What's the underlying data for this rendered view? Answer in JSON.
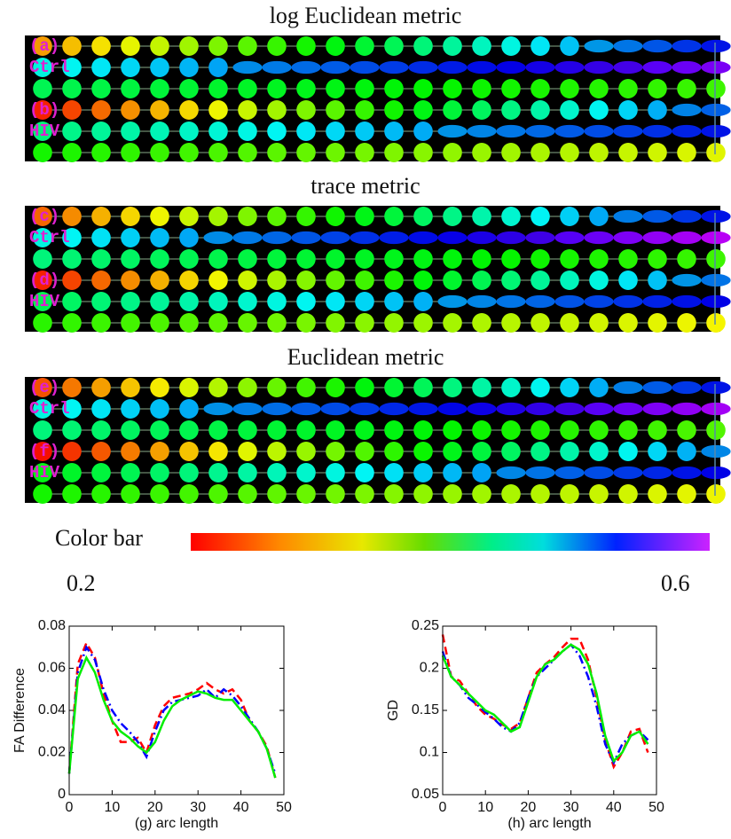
{
  "panels": [
    {
      "title": "log Euclidean metric",
      "labels": [
        "(a)",
        "Ctrl",
        "(b)",
        "HIV"
      ]
    },
    {
      "title": "trace metric",
      "labels": [
        "(c)",
        "Ctrl",
        "(d)",
        "HIV"
      ]
    },
    {
      "title": "Euclidean metric",
      "labels": [
        "(e)",
        "Ctrl",
        "(f)",
        "HIV"
      ]
    }
  ],
  "colorbar": {
    "label": "Color bar",
    "ticks": [
      0.2,
      0.6
    ]
  },
  "chart_data": [
    {
      "type": "line",
      "ylabel": "FA Difference",
      "xlabel": "(g) arc length",
      "xlim": [
        0,
        50
      ],
      "xticks": [
        0,
        10,
        20,
        30,
        40,
        50
      ],
      "ylim": [
        0,
        0.08
      ],
      "yticks": [
        0,
        0.02,
        0.04,
        0.06,
        0.08
      ],
      "x": [
        0,
        2,
        4,
        6,
        8,
        10,
        12,
        14,
        16,
        18,
        20,
        22,
        24,
        26,
        28,
        30,
        32,
        34,
        36,
        38,
        40,
        42,
        44,
        46,
        48
      ],
      "series": [
        {
          "color": "#ff0000",
          "dash": "dashed",
          "values": [
            0.01,
            0.062,
            0.072,
            0.065,
            0.048,
            0.035,
            0.025,
            0.025,
            0.027,
            0.02,
            0.033,
            0.042,
            0.046,
            0.047,
            0.048,
            0.05,
            0.053,
            0.05,
            0.048,
            0.05,
            0.045,
            0.035,
            0.03,
            0.023,
            0.008
          ]
        },
        {
          "color": "#0000ff",
          "dash": "dashdot",
          "values": [
            0.01,
            0.058,
            0.07,
            0.064,
            0.05,
            0.04,
            0.034,
            0.03,
            0.025,
            0.018,
            0.03,
            0.04,
            0.044,
            0.045,
            0.046,
            0.047,
            0.05,
            0.046,
            0.05,
            0.047,
            0.042,
            0.036,
            0.03,
            0.022,
            0.01
          ]
        },
        {
          "color": "#00ee00",
          "dash": "solid",
          "values": [
            0.01,
            0.055,
            0.065,
            0.058,
            0.045,
            0.035,
            0.03,
            0.027,
            0.023,
            0.02,
            0.025,
            0.035,
            0.042,
            0.045,
            0.047,
            0.049,
            0.048,
            0.046,
            0.045,
            0.045,
            0.04,
            0.035,
            0.03,
            0.022,
            0.008
          ]
        }
      ]
    },
    {
      "type": "line",
      "ylabel": "GD",
      "xlabel": "(h) arc length",
      "xlim": [
        0,
        50
      ],
      "xticks": [
        0,
        10,
        20,
        30,
        40,
        50
      ],
      "ylim": [
        0.05,
        0.25
      ],
      "yticks": [
        0.05,
        0.1,
        0.15,
        0.2,
        0.25
      ],
      "x": [
        0,
        2,
        4,
        6,
        8,
        10,
        12,
        14,
        16,
        18,
        20,
        22,
        24,
        26,
        28,
        30,
        32,
        34,
        36,
        38,
        40,
        42,
        44,
        46,
        48
      ],
      "series": [
        {
          "color": "#ff0000",
          "dash": "dashed",
          "values": [
            0.24,
            0.19,
            0.185,
            0.17,
            0.155,
            0.145,
            0.14,
            0.133,
            0.128,
            0.135,
            0.165,
            0.195,
            0.205,
            0.213,
            0.225,
            0.235,
            0.235,
            0.21,
            0.165,
            0.115,
            0.083,
            0.1,
            0.125,
            0.128,
            0.1
          ]
        },
        {
          "color": "#0000ff",
          "dash": "dashdot",
          "values": [
            0.22,
            0.19,
            0.18,
            0.165,
            0.157,
            0.148,
            0.14,
            0.13,
            0.125,
            0.135,
            0.165,
            0.19,
            0.2,
            0.21,
            0.22,
            0.228,
            0.215,
            0.19,
            0.155,
            0.11,
            0.088,
            0.11,
            0.12,
            0.125,
            0.115
          ]
        },
        {
          "color": "#00ee00",
          "dash": "solid",
          "values": [
            0.215,
            0.19,
            0.18,
            0.17,
            0.16,
            0.15,
            0.145,
            0.135,
            0.125,
            0.13,
            0.16,
            0.19,
            0.205,
            0.21,
            0.22,
            0.228,
            0.222,
            0.205,
            0.17,
            0.12,
            0.09,
            0.1,
            0.12,
            0.125,
            0.11
          ]
        }
      ]
    }
  ]
}
